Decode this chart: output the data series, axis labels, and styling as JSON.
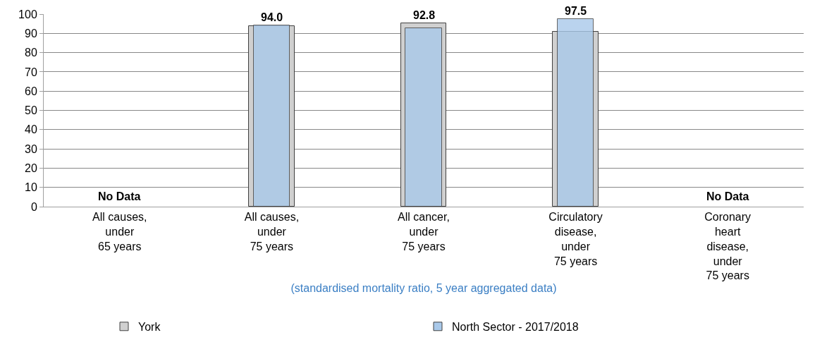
{
  "chart_data": {
    "type": "bar",
    "categories": [
      "All causes,\nunder\n65 years",
      "All causes,\nunder\n75 years",
      "All cancer,\nunder\n75 years",
      "Circulatory\ndisease,\nunder\n75 years",
      "Coronary\nheart\ndisease,\nunder\n75 years"
    ],
    "series": [
      {
        "name": "York",
        "color": "#d0d0d0",
        "values": [
          null,
          93.6,
          95.1,
          90.7,
          null
        ]
      },
      {
        "name": "North Sector - 2017/2018",
        "color": "#a9c9ea",
        "values": [
          null,
          94.0,
          92.8,
          97.5,
          null
        ],
        "value_labels": [
          null,
          "94.0",
          "92.8",
          "97.5",
          null
        ]
      }
    ],
    "xlabel": "(standardised mortality ratio, 5 year aggregated data)",
    "annotations": [
      "No Data",
      "No Data"
    ],
    "ylim": [
      0,
      100
    ],
    "yticks": [
      0,
      10,
      20,
      30,
      40,
      50,
      60,
      70,
      80,
      90,
      100
    ],
    "grid": "y",
    "legend": "bottom"
  }
}
